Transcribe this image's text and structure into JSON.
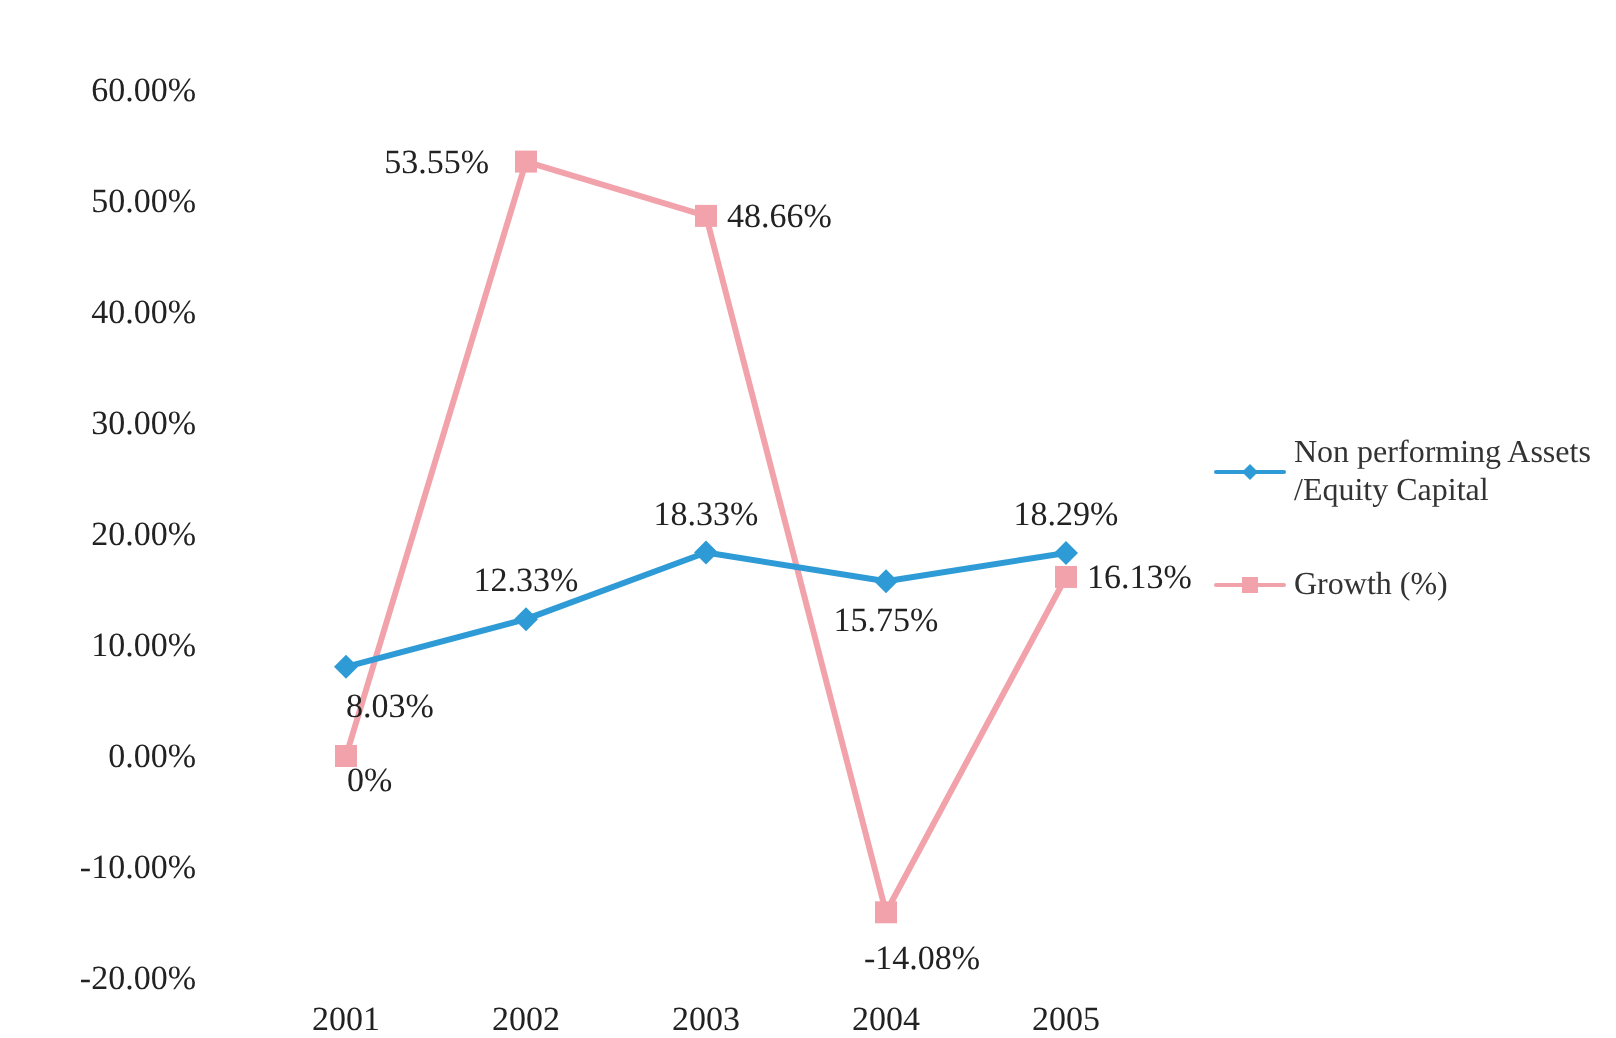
{
  "chart_data": {
    "type": "line",
    "categories": [
      "2001",
      "2002",
      "2003",
      "2004",
      "2005"
    ],
    "series": [
      {
        "name": "Non performing Assets/Equity Capital",
        "color": "#2e9bd6",
        "marker": "diamond",
        "values": [
          8.03,
          12.33,
          18.33,
          15.75,
          18.29
        ],
        "value_labels": [
          "8.03%",
          "12.33%",
          "18.33%",
          "15.75%",
          "18.29%"
        ]
      },
      {
        "name": "Growth (%)",
        "color": "#f2a2ab",
        "marker": "square",
        "values": [
          0,
          53.55,
          48.66,
          -14.08,
          16.13
        ],
        "value_labels": [
          "0%",
          "53.55%",
          "48.66%",
          "-14.08%",
          "16.13%"
        ]
      }
    ],
    "ylim": [
      -20,
      60
    ],
    "yticks": [
      {
        "value": -20,
        "label": "-20.00%"
      },
      {
        "value": -10,
        "label": "-10.00%"
      },
      {
        "value": 0,
        "label": "0.00%"
      },
      {
        "value": 10,
        "label": "10.00%"
      },
      {
        "value": 20,
        "label": "20.00%"
      },
      {
        "value": 30,
        "label": "30.00%"
      },
      {
        "value": 40,
        "label": "40.00%"
      },
      {
        "value": 50,
        "label": "50.00%"
      },
      {
        "value": 60,
        "label": "60.00%"
      }
    ],
    "grid": false,
    "legend": "right",
    "line_style": "solid"
  }
}
